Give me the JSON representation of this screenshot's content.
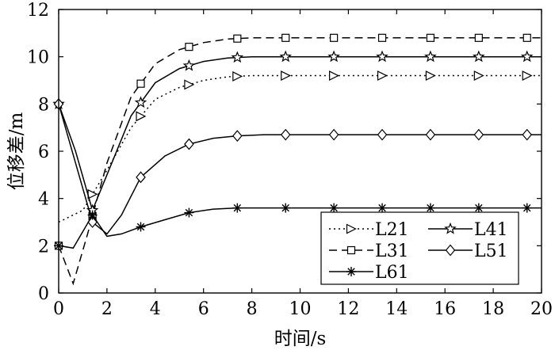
{
  "chart_data": {
    "type": "line",
    "xlabel": "时间/s",
    "ylabel": "位移差/m",
    "xlim": [
      0,
      20
    ],
    "ylim": [
      0,
      12
    ],
    "x_ticks": [
      "0",
      "2",
      "4",
      "6",
      "8",
      "10",
      "12",
      "14",
      "16",
      "18",
      "20"
    ],
    "y_ticks": [
      "0",
      "2",
      "4",
      "6",
      "8",
      "10",
      "12"
    ],
    "grid": false,
    "legend_position": "bottom-right",
    "series": [
      {
        "name": "L21",
        "dash": "dotted",
        "marker": "triangle-right",
        "x": [
          0,
          1,
          2,
          3,
          4,
          5,
          6,
          7,
          8,
          10,
          12,
          14,
          16,
          18,
          20
        ],
        "y": [
          3.0,
          3.5,
          5.2,
          7.0,
          8.2,
          8.7,
          9.0,
          9.15,
          9.2,
          9.2,
          9.2,
          9.2,
          9.2,
          9.2,
          9.2
        ],
        "markers_x": [
          1.4,
          3.4,
          5.4,
          7.4,
          9.4,
          11.4,
          13.4,
          15.4,
          17.4,
          19.4
        ]
      },
      {
        "name": "L31",
        "dash": "dashed",
        "marker": "square",
        "x": [
          0,
          0.6,
          1.2,
          2,
          3,
          4,
          5,
          6,
          7,
          8,
          10,
          12,
          14,
          16,
          18,
          20
        ],
        "y": [
          2.0,
          0.4,
          2.5,
          5.5,
          8.3,
          9.7,
          10.3,
          10.6,
          10.75,
          10.8,
          10.8,
          10.8,
          10.8,
          10.8,
          10.8,
          10.8
        ],
        "markers_x": [
          0,
          1.4,
          3.4,
          5.4,
          7.4,
          9.4,
          11.4,
          13.4,
          15.4,
          17.4,
          19.4
        ]
      },
      {
        "name": "L41",
        "dash": "solid",
        "marker": "star",
        "x": [
          0,
          0.7,
          1.4,
          2,
          3,
          4,
          5,
          6,
          7,
          8,
          10,
          12,
          14,
          16,
          18,
          20
        ],
        "y": [
          8.0,
          6.0,
          3.5,
          5.0,
          7.5,
          8.9,
          9.5,
          9.8,
          9.95,
          10.0,
          10.0,
          10.0,
          10.0,
          10.0,
          10.0,
          10.0
        ],
        "markers_x": [
          0,
          1.4,
          3.4,
          5.4,
          7.4,
          9.4,
          11.4,
          13.4,
          15.4,
          17.4,
          19.4
        ]
      },
      {
        "name": "L51",
        "dash": "solid",
        "marker": "diamond",
        "x": [
          0,
          0.7,
          1.4,
          2,
          2.6,
          3.4,
          4.4,
          5.4,
          6.4,
          7.4,
          8.5,
          10,
          12,
          14,
          16,
          18,
          20
        ],
        "y": [
          8.0,
          5.5,
          3.0,
          2.5,
          3.3,
          4.9,
          5.8,
          6.3,
          6.55,
          6.65,
          6.7,
          6.7,
          6.7,
          6.7,
          6.7,
          6.7,
          6.7
        ],
        "markers_x": [
          0,
          1.4,
          3.4,
          5.4,
          7.4,
          9.4,
          11.4,
          13.4,
          15.4,
          17.4,
          19.4
        ]
      },
      {
        "name": "L61",
        "dash": "solid",
        "marker": "asterisk",
        "x": [
          0,
          0.6,
          1.4,
          2,
          2.6,
          3.4,
          4.4,
          5.4,
          6.4,
          7.4,
          8.5,
          10,
          12,
          14,
          16,
          18,
          20
        ],
        "y": [
          2.0,
          1.9,
          3.3,
          2.4,
          2.5,
          2.8,
          3.1,
          3.4,
          3.55,
          3.6,
          3.6,
          3.6,
          3.6,
          3.6,
          3.6,
          3.6,
          3.6
        ],
        "markers_x": [
          0,
          1.4,
          3.4,
          5.4,
          7.4,
          9.4,
          11.4,
          13.4,
          15.4,
          17.4,
          19.4
        ]
      }
    ]
  }
}
